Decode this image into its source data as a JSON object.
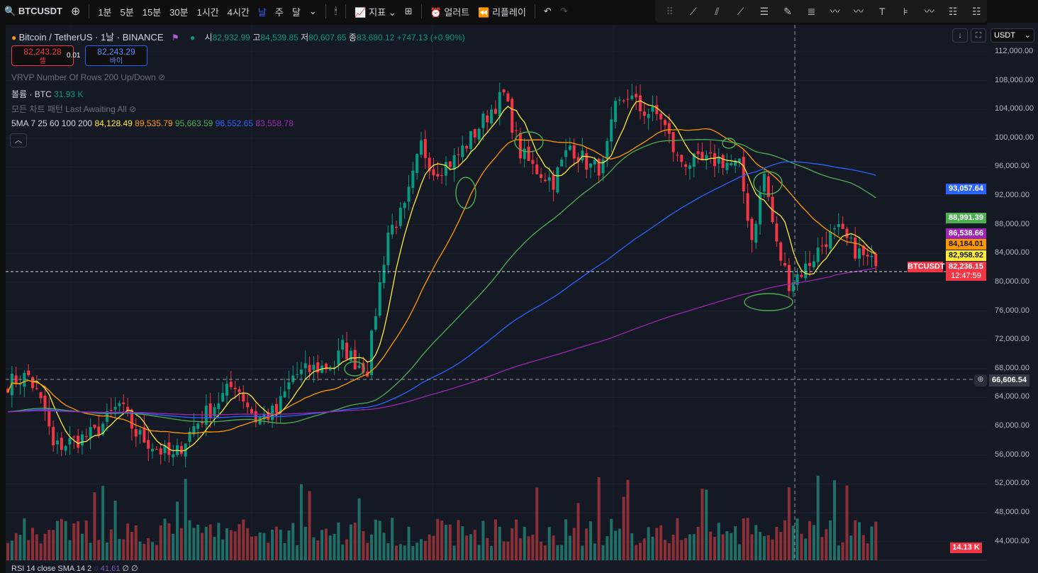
{
  "toolbar": {
    "symbol": "BTCUSDT",
    "intervals": [
      "1분",
      "5분",
      "15분",
      "30분",
      "1시간",
      "4시간",
      "날",
      "주",
      "달"
    ],
    "active_interval": "날",
    "indicators": "지표",
    "alerts": "얼러트",
    "replay": "리플레이"
  },
  "legend": {
    "title": "Bitcoin / TetherUS · 1날 · BINANCE",
    "open_label": "시",
    "open": "82,932.99",
    "high_label": "고",
    "high": "84,539.85",
    "low_label": "저",
    "low": "80,607.65",
    "close_label": "종",
    "close": "83,680.12",
    "change": "+747.13 (+0.90%)",
    "sell_price": "82,243.28",
    "sell_label": "셀",
    "spread": "0.01",
    "buy_price": "82,243.29",
    "buy_label": "바이",
    "vrvp": "VRVP Number Of Rows 200 Up/Down",
    "volume_label": "볼륨 · BTC",
    "volume_value": "31.93 K",
    "patterns": "모든 차트 패턴 Last Awaiting All",
    "ma_label": "5MA 7 25 60 100 200",
    "ma_values": [
      "84,128.49",
      "89,535.79",
      "95,663.59",
      "96,552.65",
      "83,558.78"
    ],
    "rsi_label": "RSI 14 close SMA 14 2",
    "rsi_value": "41.61",
    "rsi_extra": "∅ ∅"
  },
  "axis": {
    "currency": "USDT",
    "ticks": [
      "112,000.00",
      "108,000.00",
      "104,000.00",
      "100,000.00",
      "96,000.00",
      "92,000.00",
      "88,000.00",
      "84,000.00",
      "80,000.00",
      "76,000.00",
      "72,000.00",
      "68,000.00",
      "64,000.00",
      "60,000.00",
      "56,000.00",
      "52,000.00",
      "48,000.00",
      "44,000.00"
    ],
    "tags": [
      {
        "text": "93,057.64",
        "color": "#2962ff",
        "dark": false
      },
      {
        "text": "88,991.39",
        "color": "#4caf50",
        "dark": false
      },
      {
        "text": "86,538.66",
        "color": "#9c27b0",
        "dark": false
      },
      {
        "text": "84,184.01",
        "color": "#ff9800",
        "dark": true
      },
      {
        "text": "82,958.92",
        "color": "#ffeb3b",
        "dark": true
      }
    ],
    "last_price": "82,236.15",
    "countdown": "12:47:59",
    "symbol_tag": "BTCUSDT",
    "crosshair_price": "66,606.54",
    "volume_tag": "14.13 K"
  },
  "colors": {
    "up": "#089981",
    "down": "#f23645",
    "ma7": "#ffeb3b",
    "ma25": "#ff9800",
    "ma60": "#4caf50",
    "ma100": "#2962ff",
    "ma200": "#9c27b0"
  },
  "chart_data": {
    "type": "candlestick",
    "ylim": [
      44000,
      112000
    ],
    "close_path": [
      [
        0,
        66000
      ],
      [
        5,
        67000
      ],
      [
        9,
        62000
      ],
      [
        11,
        57000
      ],
      [
        16,
        58000
      ],
      [
        21,
        59000
      ],
      [
        27,
        63000
      ],
      [
        31,
        59000
      ],
      [
        36,
        57000
      ],
      [
        40,
        55500
      ],
      [
        45,
        60000
      ],
      [
        50,
        63000
      ],
      [
        55,
        66000
      ],
      [
        60,
        61000
      ],
      [
        65,
        62000
      ],
      [
        69,
        67000
      ],
      [
        74,
        68000
      ],
      [
        79,
        68500
      ],
      [
        81,
        71000
      ],
      [
        84,
        69000
      ],
      [
        87,
        68000
      ],
      [
        89,
        76000
      ],
      [
        92,
        87000
      ],
      [
        96,
        90000
      ],
      [
        100,
        99000
      ],
      [
        103,
        95500
      ],
      [
        108,
        97000
      ],
      [
        112,
        100000
      ],
      [
        117,
        104000
      ],
      [
        120,
        106000
      ],
      [
        124,
        98000
      ],
      [
        127,
        96000
      ],
      [
        132,
        94000
      ],
      [
        136,
        99000
      ],
      [
        141,
        96000
      ],
      [
        144,
        96000
      ],
      [
        147,
        104000
      ],
      [
        150,
        106000
      ],
      [
        153,
        104000
      ],
      [
        158,
        103000
      ],
      [
        162,
        97000
      ],
      [
        167,
        96500
      ],
      [
        172,
        97000
      ],
      [
        177,
        96000
      ],
      [
        180,
        86000
      ],
      [
        183,
        95000
      ],
      [
        186,
        85000
      ],
      [
        189,
        80000
      ],
      [
        193,
        82000
      ],
      [
        198,
        86000
      ],
      [
        201,
        87000
      ],
      [
        204,
        85000
      ],
      [
        208,
        83000
      ],
      [
        210,
        82236
      ]
    ]
  }
}
